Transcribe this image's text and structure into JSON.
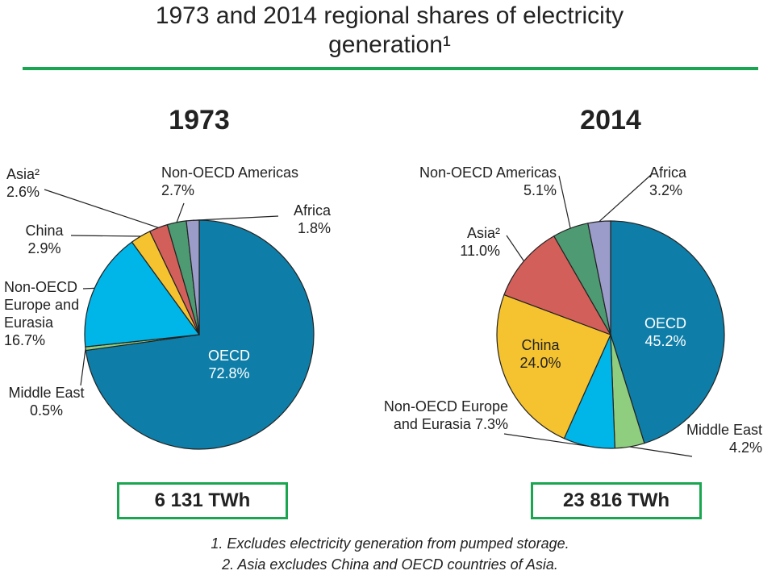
{
  "title": "1973 and 2014 regional shares of electricity generation¹",
  "footnotes": [
    "1. Excludes electricity generation from pumped storage.",
    "2. Asia excludes China and OECD countries of Asia."
  ],
  "chart_data": [
    {
      "type": "pie",
      "title": "1973",
      "total": "6 131 TWh",
      "categories": [
        "OECD",
        "Middle East",
        "Non-OECD Europe and Eurasia",
        "China",
        "Asia²",
        "Non-OECD Americas",
        "Africa"
      ],
      "values": [
        72.8,
        0.5,
        16.7,
        2.9,
        2.6,
        2.7,
        1.8
      ],
      "value_labels": [
        "72.8%",
        "0.5%",
        "16.7%",
        "2.9%",
        "2.6%",
        "2.7%",
        "1.8%"
      ],
      "colors": [
        "#0e7ea8",
        "#8fce7f",
        "#00b5e8",
        "#f5c330",
        "#d35f5a",
        "#4d9a73",
        "#9b9cc9"
      ]
    },
    {
      "type": "pie",
      "title": "2014",
      "total": "23 816 TWh",
      "categories": [
        "OECD",
        "Middle East",
        "Non-OECD Europe and Eurasia",
        "China",
        "Asia²",
        "Non-OECD Americas",
        "Africa"
      ],
      "values": [
        45.2,
        4.2,
        7.3,
        24.0,
        11.0,
        5.1,
        3.2
      ],
      "value_labels": [
        "45.2%",
        "4.2%",
        "7.3%",
        "24.0%",
        "11.0%",
        "5.1%",
        "3.2%"
      ],
      "colors": [
        "#0e7ea8",
        "#8fce7f",
        "#00b5e8",
        "#f5c330",
        "#d35f5a",
        "#4d9a73",
        "#9b9cc9"
      ]
    }
  ]
}
